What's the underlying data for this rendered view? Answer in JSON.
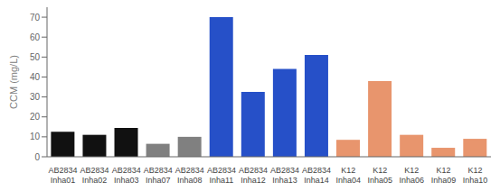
{
  "chart_data": {
    "type": "bar",
    "ylabel": "CCM (mg/L)",
    "categories": [
      [
        "AB2834",
        "Inha01"
      ],
      [
        "AB2834",
        "Inha02"
      ],
      [
        "AB2834",
        "Inha03"
      ],
      [
        "AB2834",
        "Inha07"
      ],
      [
        "AB2834",
        "Inha08"
      ],
      [
        "AB2834",
        "Inha11"
      ],
      [
        "AB2834",
        "Inha12"
      ],
      [
        "AB2834",
        "Inha13"
      ],
      [
        "AB2834",
        "Inha14"
      ],
      [
        "K12",
        "Inha04"
      ],
      [
        "K12",
        "Inha05"
      ],
      [
        "K12",
        "Inha06"
      ],
      [
        "K12",
        "Inha09"
      ],
      [
        "K12",
        "Inha10"
      ]
    ],
    "values": [
      12.5,
      11.0,
      14.5,
      6.5,
      10.0,
      70.0,
      32.5,
      44.0,
      51.0,
      8.5,
      38.0,
      11.0,
      4.5,
      9.0
    ],
    "colors": [
      "#111111",
      "#111111",
      "#111111",
      "#808080",
      "#808080",
      "#2650c8",
      "#2650c8",
      "#2650c8",
      "#2650c8",
      "#e8956d",
      "#e8956d",
      "#e8956d",
      "#e8956d",
      "#e8956d"
    ],
    "ylim": [
      0,
      75
    ],
    "yticks": [
      0,
      10,
      20,
      30,
      40,
      50,
      60,
      70
    ]
  }
}
